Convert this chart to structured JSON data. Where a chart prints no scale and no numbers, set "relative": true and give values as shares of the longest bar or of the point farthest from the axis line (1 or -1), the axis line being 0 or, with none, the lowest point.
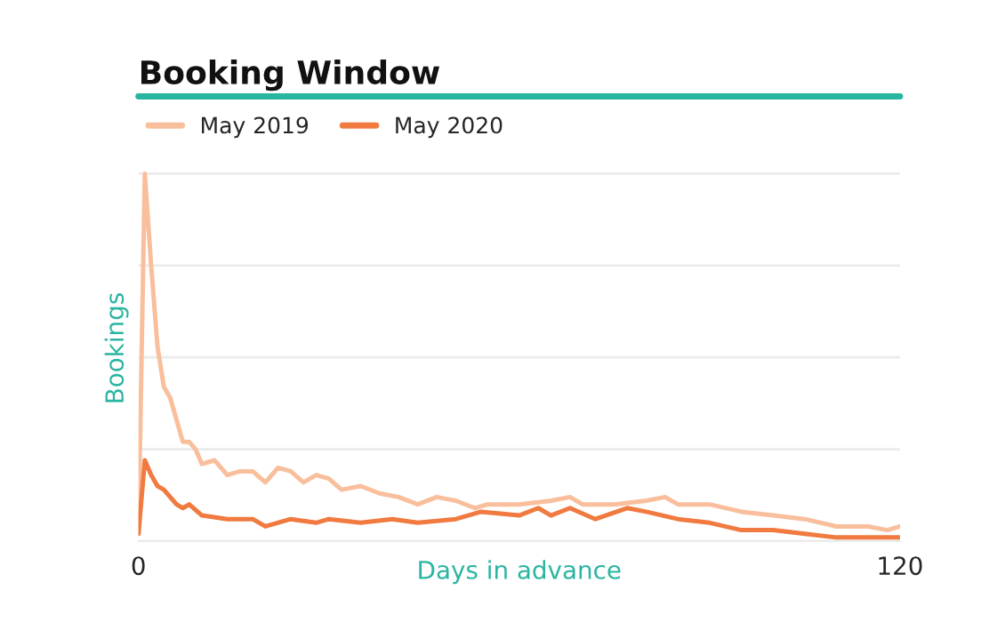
{
  "chart_data": {
    "type": "line",
    "title": "Booking Window",
    "xlabel": "Days in advance",
    "ylabel": "Bookings",
    "relative": true,
    "xlim": [
      0,
      120
    ],
    "xticks": [
      0,
      120
    ],
    "grid": "y",
    "legend": "top left",
    "marker": "none",
    "line_style": "solid",
    "series": [
      {
        "name": "May 2019",
        "color": "#f9bf9c",
        "x": [
          0,
          1,
          2,
          3,
          4,
          5,
          6,
          7,
          8,
          9,
          10,
          12,
          14,
          16,
          18,
          20,
          22,
          24,
          26,
          28,
          30,
          32,
          35,
          38,
          41,
          44,
          47,
          50,
          53,
          55,
          60,
          65,
          68,
          70,
          75,
          80,
          83,
          85,
          90,
          95,
          100,
          105,
          110,
          115,
          118,
          120
        ],
        "values": [
          0.02,
          1.0,
          0.75,
          0.53,
          0.42,
          0.39,
          0.33,
          0.27,
          0.27,
          0.25,
          0.21,
          0.22,
          0.18,
          0.19,
          0.19,
          0.16,
          0.2,
          0.19,
          0.16,
          0.18,
          0.17,
          0.14,
          0.15,
          0.13,
          0.12,
          0.1,
          0.12,
          0.11,
          0.09,
          0.1,
          0.1,
          0.11,
          0.12,
          0.1,
          0.1,
          0.11,
          0.12,
          0.1,
          0.1,
          0.08,
          0.07,
          0.06,
          0.04,
          0.04,
          0.03,
          0.04
        ]
      },
      {
        "name": "May 2020",
        "color": "#f07a3f",
        "x": [
          0,
          1,
          2,
          3,
          4,
          6,
          7,
          8,
          10,
          14,
          16,
          18,
          20,
          24,
          28,
          30,
          35,
          40,
          44,
          50,
          54,
          60,
          63,
          65,
          68,
          72,
          77,
          80,
          85,
          90,
          95,
          100,
          105,
          110,
          115,
          120
        ],
        "values": [
          0.02,
          0.22,
          0.18,
          0.15,
          0.14,
          0.1,
          0.09,
          0.1,
          0.07,
          0.06,
          0.06,
          0.06,
          0.04,
          0.06,
          0.05,
          0.06,
          0.05,
          0.06,
          0.05,
          0.06,
          0.08,
          0.07,
          0.09,
          0.07,
          0.09,
          0.06,
          0.09,
          0.08,
          0.06,
          0.05,
          0.03,
          0.03,
          0.02,
          0.01,
          0.01,
          0.01
        ]
      }
    ]
  }
}
